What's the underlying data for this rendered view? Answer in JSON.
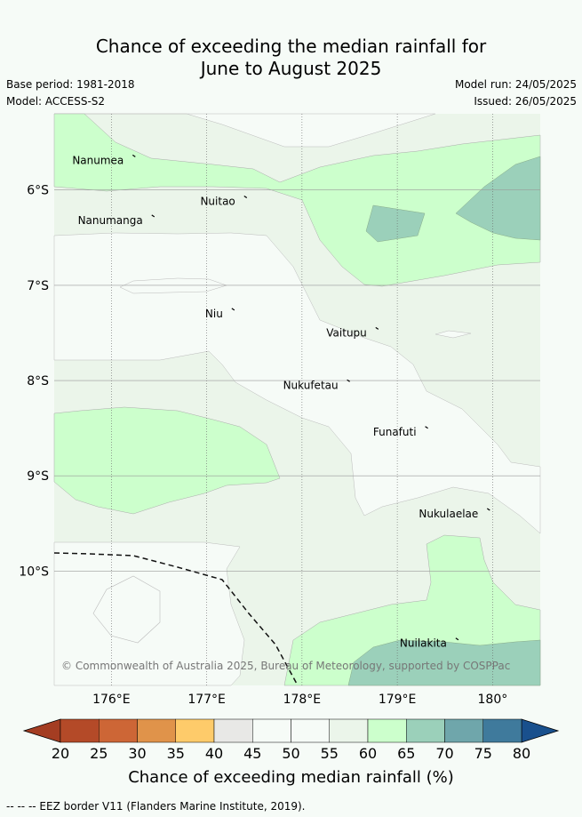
{
  "title_line1": "Chance of exceeding the median rainfall for",
  "title_line2": "June to August 2025",
  "base_period": "Base period: 1981-2018",
  "model": "Model: ACCESS-S2",
  "model_run": "Model run: 24/05/2025",
  "issued": "Issued: 26/05/2025",
  "copyright": "© Commonwealth of Australia 2025, Bureau of Meteorology, supported by COSPPac",
  "footnote": "-- -- -- EEZ border V11 (Flanders Marine Institute, 2019).",
  "chart_data": {
    "type": "heatmap",
    "xlabel": "",
    "ylabel": "",
    "x_ticks": [
      "176°E",
      "177°E",
      "178°E",
      "179°E",
      "180°"
    ],
    "x_tick_values": [
      176,
      177,
      178,
      179,
      180
    ],
    "y_ticks": [
      "6°S",
      "7°S",
      "8°S",
      "9°S",
      "10°S"
    ],
    "y_tick_values": [
      -6,
      -7,
      -8,
      -9,
      -10
    ],
    "xlim": [
      175.4,
      180.5
    ],
    "ylim": [
      -11.2,
      -5.2
    ],
    "grid": true,
    "places": [
      {
        "name": "Nanumea",
        "lon": 176.13,
        "lat": -5.67
      },
      {
        "name": "Nuitao",
        "lon": 177.3,
        "lat": -6.1
      },
      {
        "name": "Nanumanga",
        "lon": 176.33,
        "lat": -6.3
      },
      {
        "name": "Niu",
        "lon": 177.17,
        "lat": -7.28
      },
      {
        "name": "Vaitupu",
        "lon": 178.68,
        "lat": -7.48
      },
      {
        "name": "Nukufetau",
        "lon": 178.38,
        "lat": -8.03
      },
      {
        "name": "Funafuti",
        "lon": 179.2,
        "lat": -8.52
      },
      {
        "name": "Nukulaelae",
        "lon": 179.85,
        "lat": -9.38
      },
      {
        "name": "Nuilakita",
        "lon": 179.52,
        "lat": -10.74
      }
    ],
    "colorbar": {
      "label": "Chance of exceeding median rainfall (%)",
      "ticks": [
        "20",
        "25",
        "30",
        "35",
        "40",
        "45",
        "50",
        "55",
        "60",
        "65",
        "70",
        "75",
        "80"
      ],
      "colors": [
        "#b44a28",
        "#cd6636",
        "#e0934a",
        "#fecb6a",
        "#e8e8e6",
        "#f6fbf7",
        "#f6fbf7",
        "#ebf5ea",
        "#ccffcc",
        "#9bd0ba",
        "#6fa6ab",
        "#3f7a9c",
        "#1b4f8c"
      ],
      "extend_low": "#a43d22",
      "extend_high": "#19508d"
    }
  }
}
